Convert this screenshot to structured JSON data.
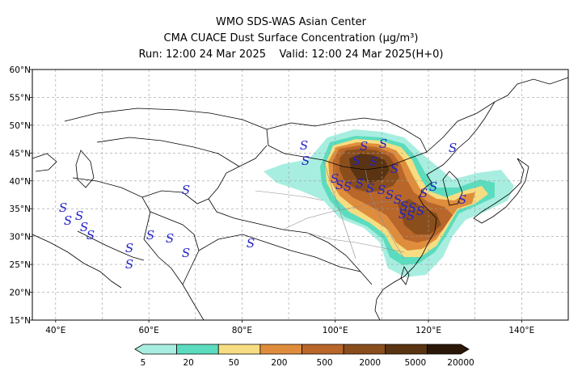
{
  "header": {
    "line1": "WMO SDS-WAS Asian Center",
    "line2": "CMA CUACE Dust Surface Concentration (μg/m³)",
    "line3": "Run: 12:00 24 Mar 2025    Valid: 12:00 24 Mar 2025(H+0)"
  },
  "map": {
    "lon_range": [
      35,
      150
    ],
    "lat_range": [
      15,
      60
    ],
    "lon_ticks": [
      {
        "value": 40,
        "label": "40°E"
      },
      {
        "value": 60,
        "label": "60°E"
      },
      {
        "value": 80,
        "label": "80°E"
      },
      {
        "value": 100,
        "label": "100°E"
      },
      {
        "value": 120,
        "label": "120°E"
      },
      {
        "value": 140,
        "label": "140°E"
      }
    ],
    "lat_ticks": [
      {
        "value": 60,
        "label": "60°N"
      },
      {
        "value": 55,
        "label": "55°N"
      },
      {
        "value": 50,
        "label": "50°N"
      },
      {
        "value": 45,
        "label": "45°N"
      },
      {
        "value": 40,
        "label": "40°N"
      },
      {
        "value": 35,
        "label": "35°N"
      },
      {
        "value": 30,
        "label": "30°N"
      },
      {
        "value": 25,
        "label": "25°N"
      },
      {
        "value": 20,
        "label": "20°N"
      },
      {
        "value": 15,
        "label": "15°N"
      }
    ],
    "grid": true,
    "dust_marker": "S",
    "dust_marker_color": "#2323c8"
  },
  "colorbar": {
    "levels": [
      "5",
      "20",
      "50",
      "200",
      "500",
      "2000",
      "5000",
      "20000"
    ],
    "colors": [
      "#a8eee0",
      "#5cdcbe",
      "#f7dd82",
      "#df8d3c",
      "#b8662a",
      "#8a4e1c",
      "#5a3412",
      "#2a1707"
    ]
  }
}
